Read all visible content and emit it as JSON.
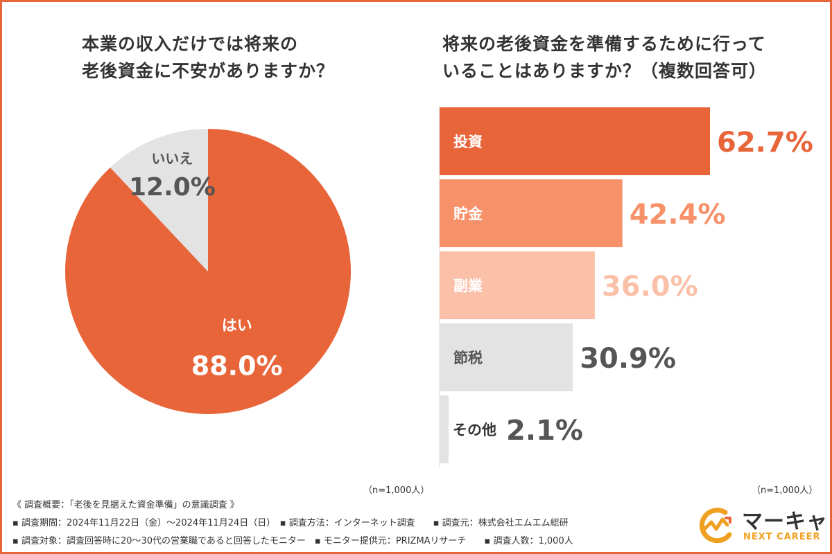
{
  "left_title": {
    "line1": "本業の収入だけでは将来の",
    "line2": "老後資金に不安がありますか？"
  },
  "right_title": {
    "line1": "将来の老後資金を準備するために行って",
    "line2": "いることはありますか？（複数回答可）"
  },
  "chart_data": [
    {
      "type": "pie",
      "title": "本業の収入だけでは将来の老後資金に不安がありますか？",
      "slices": [
        {
          "label": "はい",
          "value": 88.0,
          "display": "88.0%",
          "color": "#e8653a"
        },
        {
          "label": "いいえ",
          "value": 12.0,
          "display": "12.0%",
          "color": "#e3e3e3"
        }
      ],
      "note": "（n=1,000人）"
    },
    {
      "type": "bar",
      "orientation": "horizontal",
      "title": "将来の老後資金を準備するために行っていることはありますか？（複数回答可）",
      "categories": [
        "投資",
        "貯金",
        "副業",
        "節税",
        "その他"
      ],
      "values": [
        62.7,
        42.4,
        36.0,
        30.9,
        2.1
      ],
      "value_labels": [
        "62.7%",
        "42.4%",
        "36.0%",
        "30.9%",
        "2.1%"
      ],
      "bar_colors": [
        "#e8653a",
        "#f6916a",
        "#fbc0a8",
        "#e3e3e3",
        "#e3e3e3"
      ],
      "label_colors": [
        "#e8653a",
        "#f6916a",
        "#fbc0a8",
        "#555555",
        "#555555"
      ],
      "xlim": [
        0,
        100
      ],
      "note": "（n=1,000人）"
    }
  ],
  "survey": {
    "line1": "《 調査概要：「老後を見据えた資金準備」の意識調査 》",
    "line2": "▪ 調査期間：2024年11月22日（金）〜2024年11月24日（日）　▪ 調査方法：インターネット調査　　▪ 調査元：株式会社エムエム総研",
    "line3": "▪ 調査対象：調査回答時に20〜30代の営業職であると回答したモニター　▪ モニター提供元：PRIZMAリサーチ　　▪ 調査人数：1,000人"
  },
  "logo": {
    "name": "マーキャリ",
    "sub": "NEXT CAREER",
    "colors": {
      "primary": "#f0a020",
      "accent": "#e8653a",
      "dark": "#333333"
    }
  },
  "colors": {
    "border": "#e8653a",
    "text": "#333333"
  }
}
